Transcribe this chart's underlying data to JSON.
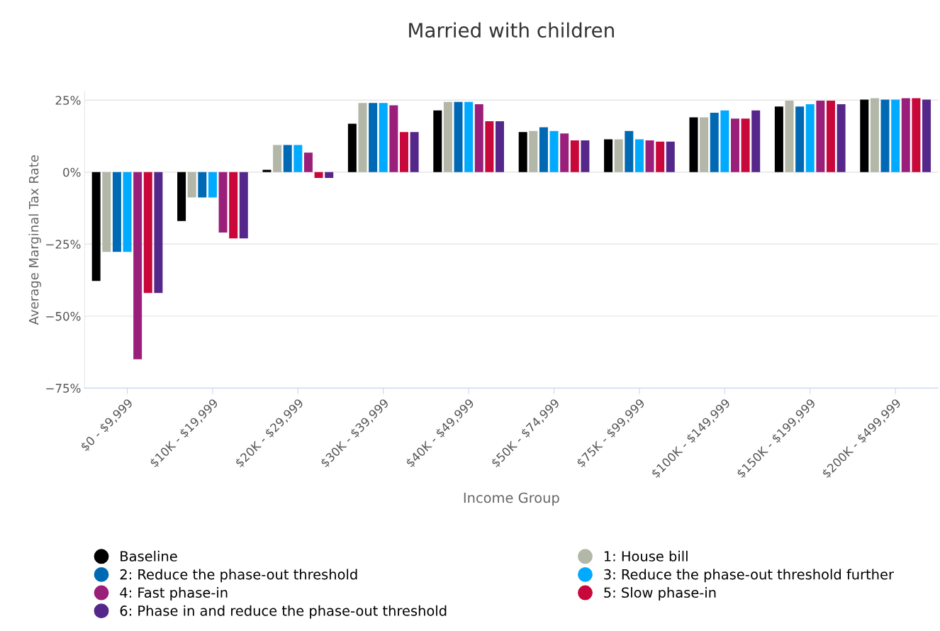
{
  "chart_data": {
    "type": "bar",
    "title": "Married with children",
    "xlabel": "Income Group",
    "ylabel": "Average Marginal Tax Rate",
    "categories": [
      "$0 - $9,999",
      "$10K - $19,999",
      "$20K - $29,999",
      "$30K - $39,999",
      "$40K - $49,999",
      "$50K - $74,999",
      "$75K - $99,999",
      "$100K - $149,999",
      "$150K - $199,999",
      "$200K - $499,999"
    ],
    "series": [
      {
        "name": "Baseline",
        "color": "#000000",
        "values": [
          -37.8,
          -17,
          0.8,
          16.8,
          21.4,
          13.9,
          11.4,
          19.0,
          22.8,
          25.2
        ]
      },
      {
        "name": "1: House bill",
        "color": "#b3b7a8",
        "values": [
          -27.7,
          -8.8,
          9.4,
          24,
          24.4,
          14.3,
          11.4,
          19.0,
          24.8,
          25.7
        ]
      },
      {
        "name": "2: Reduce the phase-out threshold",
        "color": "#0069b4",
        "values": [
          -27.7,
          -8.8,
          9.4,
          24,
          24.4,
          15.6,
          14.3,
          20.6,
          22.8,
          25.2
        ]
      },
      {
        "name": "3: Reduce the phase-out threshold further",
        "color": "#00aaff",
        "values": [
          -27.7,
          -8.8,
          9.4,
          24,
          24.4,
          14.3,
          11.4,
          21.4,
          23.6,
          25.2
        ]
      },
      {
        "name": "4: Fast phase-in",
        "color": "#9a1f7a",
        "values": [
          -65,
          -21,
          6.8,
          23.2,
          23.6,
          13.4,
          11.0,
          18.6,
          24.8,
          25.7
        ]
      },
      {
        "name": "5: Slow phase-in",
        "color": "#c8083a",
        "values": [
          -42,
          -23,
          -2,
          13.9,
          17.7,
          11.0,
          10.6,
          18.6,
          24.8,
          25.7
        ]
      },
      {
        "name": "6: Phase in and reduce the phase-out threshold",
        "color": "#55278a",
        "values": [
          -42,
          -23,
          -2,
          13.9,
          17.7,
          11.0,
          10.6,
          21.4,
          23.6,
          25.2
        ]
      }
    ],
    "ylim": [
      -75,
      28
    ],
    "yticks": [
      {
        "value": -75,
        "label": "−75%"
      },
      {
        "value": -50,
        "label": "−50%"
      },
      {
        "value": -25,
        "label": "−25%"
      },
      {
        "value": 0,
        "label": "0%"
      },
      {
        "value": 25,
        "label": "25%"
      }
    ],
    "grid": "y",
    "legend": "bottom",
    "marker": "circle"
  }
}
